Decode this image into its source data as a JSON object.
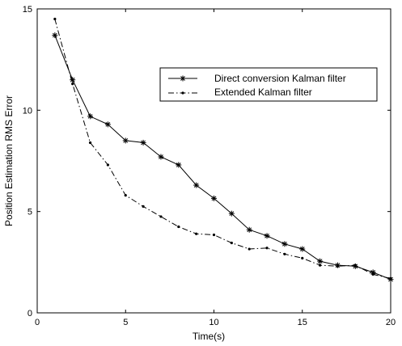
{
  "chart_data": {
    "type": "line",
    "xlabel": "Time(s)",
    "ylabel": "Position Estimation RMS Error",
    "xlim": [
      0,
      20
    ],
    "ylim": [
      0,
      15
    ],
    "xticks": [
      0,
      5,
      10,
      15,
      20
    ],
    "yticks": [
      0,
      5,
      10,
      15
    ],
    "grid": false,
    "legend_position": "top-right",
    "series": [
      {
        "name": "Direct conversion Kalman filter",
        "line_style": "solid",
        "marker": "star",
        "color": "#000000",
        "x": [
          1,
          2,
          3,
          4,
          5,
          6,
          7,
          8,
          9,
          10,
          11,
          12,
          13,
          14,
          15,
          16,
          17,
          18,
          19,
          20
        ],
        "values": [
          13.7,
          11.5,
          9.7,
          9.3,
          8.5,
          8.4,
          7.7,
          7.3,
          6.3,
          5.65,
          4.9,
          4.1,
          3.8,
          3.4,
          3.15,
          2.55,
          2.35,
          2.3,
          2.0,
          1.65
        ]
      },
      {
        "name": "Extended Kalman filter",
        "line_style": "dashdot",
        "marker": "dot",
        "color": "#000000",
        "x": [
          1,
          2,
          3,
          4,
          5,
          6,
          7,
          8,
          9,
          10,
          11,
          12,
          13,
          14,
          15,
          16,
          17,
          18,
          19,
          20
        ],
        "values": [
          14.5,
          11.3,
          8.4,
          7.3,
          5.8,
          5.25,
          4.75,
          4.25,
          3.9,
          3.85,
          3.45,
          3.15,
          3.2,
          2.9,
          2.7,
          2.35,
          2.3,
          2.35,
          1.9,
          1.7
        ]
      }
    ]
  }
}
